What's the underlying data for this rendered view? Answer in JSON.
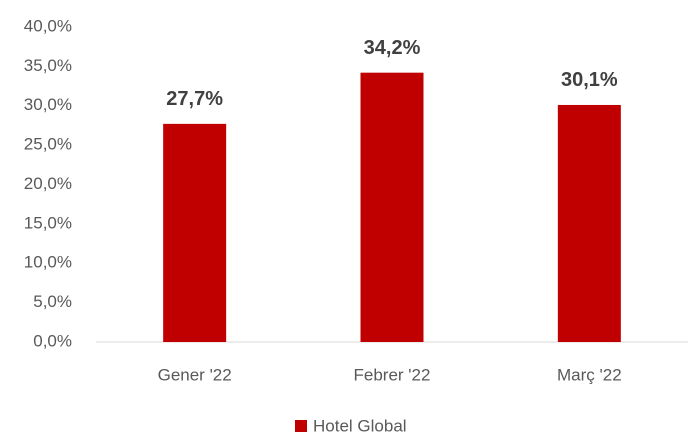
{
  "chart_data": {
    "type": "bar",
    "categories": [
      "Gener '22",
      "Febrer '22",
      "Març '22"
    ],
    "series": [
      {
        "name": "Hotel Global",
        "color": "#c00000",
        "values": [
          27.7,
          34.2,
          30.1
        ],
        "value_labels": [
          "27,7%",
          "34,2%",
          "30,1%"
        ]
      }
    ],
    "ylim": [
      0,
      40
    ],
    "yticks": [
      {
        "value": 0,
        "label": "0,0%"
      },
      {
        "value": 5,
        "label": "5,0%"
      },
      {
        "value": 10,
        "label": "10,0%"
      },
      {
        "value": 15,
        "label": "15,0%"
      },
      {
        "value": 20,
        "label": "20,0%"
      },
      {
        "value": 25,
        "label": "25,0%"
      },
      {
        "value": 30,
        "label": "30,0%"
      },
      {
        "value": 35,
        "label": "35,0%"
      },
      {
        "value": 40,
        "label": "40,0%"
      }
    ],
    "grid": false,
    "legend": "bottom"
  }
}
